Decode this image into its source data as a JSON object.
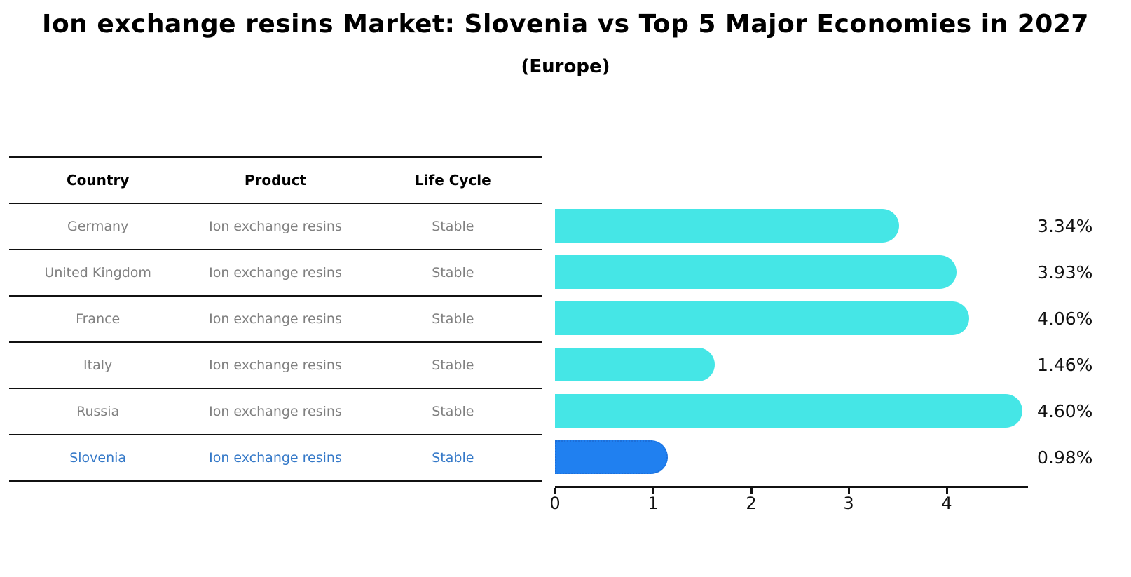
{
  "header": {
    "title": "Ion exchange resins Market: Slovenia vs Top 5 Major Economies in 2027",
    "subtitle": "(Europe)"
  },
  "table": {
    "columns": [
      "Country",
      "Product",
      "Life Cycle"
    ],
    "rows": [
      {
        "country": "Germany",
        "product": "Ion exchange resins",
        "life_cycle": "Stable",
        "highlight": false
      },
      {
        "country": "United Kingdom",
        "product": "Ion exchange resins",
        "life_cycle": "Stable",
        "highlight": false
      },
      {
        "country": "France",
        "product": "Ion exchange resins",
        "life_cycle": "Stable",
        "highlight": false
      },
      {
        "country": "Italy",
        "product": "Ion exchange resins",
        "life_cycle": "Stable",
        "highlight": false
      },
      {
        "country": "Russia",
        "product": "Ion exchange resins",
        "life_cycle": "Stable",
        "highlight": false
      },
      {
        "country": "Slovenia",
        "product": "Ion exchange resins",
        "life_cycle": "Stable",
        "highlight": true
      }
    ]
  },
  "chart_data": {
    "type": "bar",
    "orientation": "horizontal",
    "categories": [
      "Germany",
      "United Kingdom",
      "France",
      "Italy",
      "Russia",
      "Slovenia"
    ],
    "values": [
      3.34,
      3.93,
      4.06,
      1.46,
      4.6,
      0.98
    ],
    "value_labels": [
      "3.34%",
      "3.93%",
      "4.06%",
      "1.46%",
      "4.60%",
      "0.98%"
    ],
    "title": "Ion exchange resins Market: Slovenia vs Top 5 Major Economies in 2027",
    "subtitle": "(Europe)",
    "xlabel": "",
    "ylabel": "",
    "xlim": [
      0,
      4.83
    ],
    "x_ticks": [
      "0",
      "1",
      "2",
      "3",
      "4"
    ],
    "grid": false,
    "legend": false,
    "highlight_category": "Slovenia",
    "bar_color": "#45e6e6",
    "highlight_bar_color": "#2080f0",
    "highlight_text_color": "#3579c8"
  }
}
